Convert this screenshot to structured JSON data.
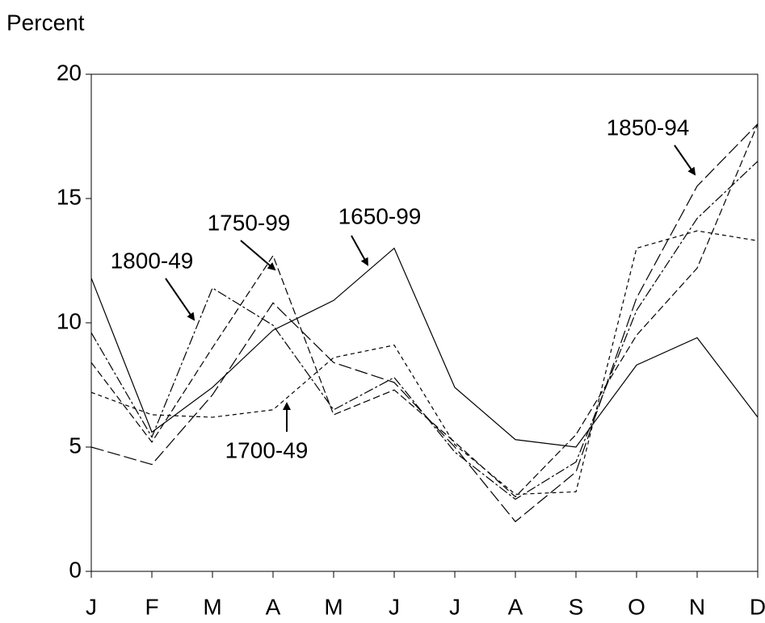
{
  "chart_data": {
    "type": "line",
    "y_label": "Percent",
    "categories": [
      "J",
      "F",
      "M",
      "A",
      "M",
      "J",
      "J",
      "A",
      "S",
      "O",
      "N",
      "D"
    ],
    "ylim": [
      0,
      20
    ],
    "yticks": [
      0,
      5,
      10,
      15,
      20
    ],
    "grid": false,
    "series": [
      {
        "name": "1650-99",
        "color": "#000000",
        "dash": "none",
        "values": [
          11.8,
          5.6,
          7.4,
          9.7,
          10.9,
          13.0,
          7.4,
          5.3,
          5.0,
          8.3,
          9.4,
          6.2
        ]
      },
      {
        "name": "1700-49",
        "color": "#000000",
        "dash": "5,4",
        "values": [
          7.2,
          6.3,
          6.2,
          6.5,
          8.6,
          9.1,
          5.1,
          3.1,
          3.2,
          13.0,
          13.7,
          13.3
        ]
      },
      {
        "name": "1750-99",
        "color": "#000000",
        "dash": "9,4",
        "values": [
          8.4,
          5.2,
          9.0,
          12.7,
          6.3,
          7.3,
          5.2,
          3.0,
          5.5,
          9.5,
          12.2,
          18.0
        ]
      },
      {
        "name": "1800-49",
        "color": "#000000",
        "dash": "12,3,3,3",
        "values": [
          9.6,
          5.4,
          11.4,
          9.9,
          6.5,
          7.8,
          4.8,
          2.9,
          4.4,
          10.5,
          14.2,
          16.5
        ]
      },
      {
        "name": "1850-94",
        "color": "#000000",
        "dash": "16,5",
        "values": [
          5.0,
          4.3,
          7.1,
          10.8,
          8.4,
          7.6,
          5.0,
          2.0,
          4.0,
          11.0,
          15.5,
          18.0
        ]
      }
    ]
  }
}
